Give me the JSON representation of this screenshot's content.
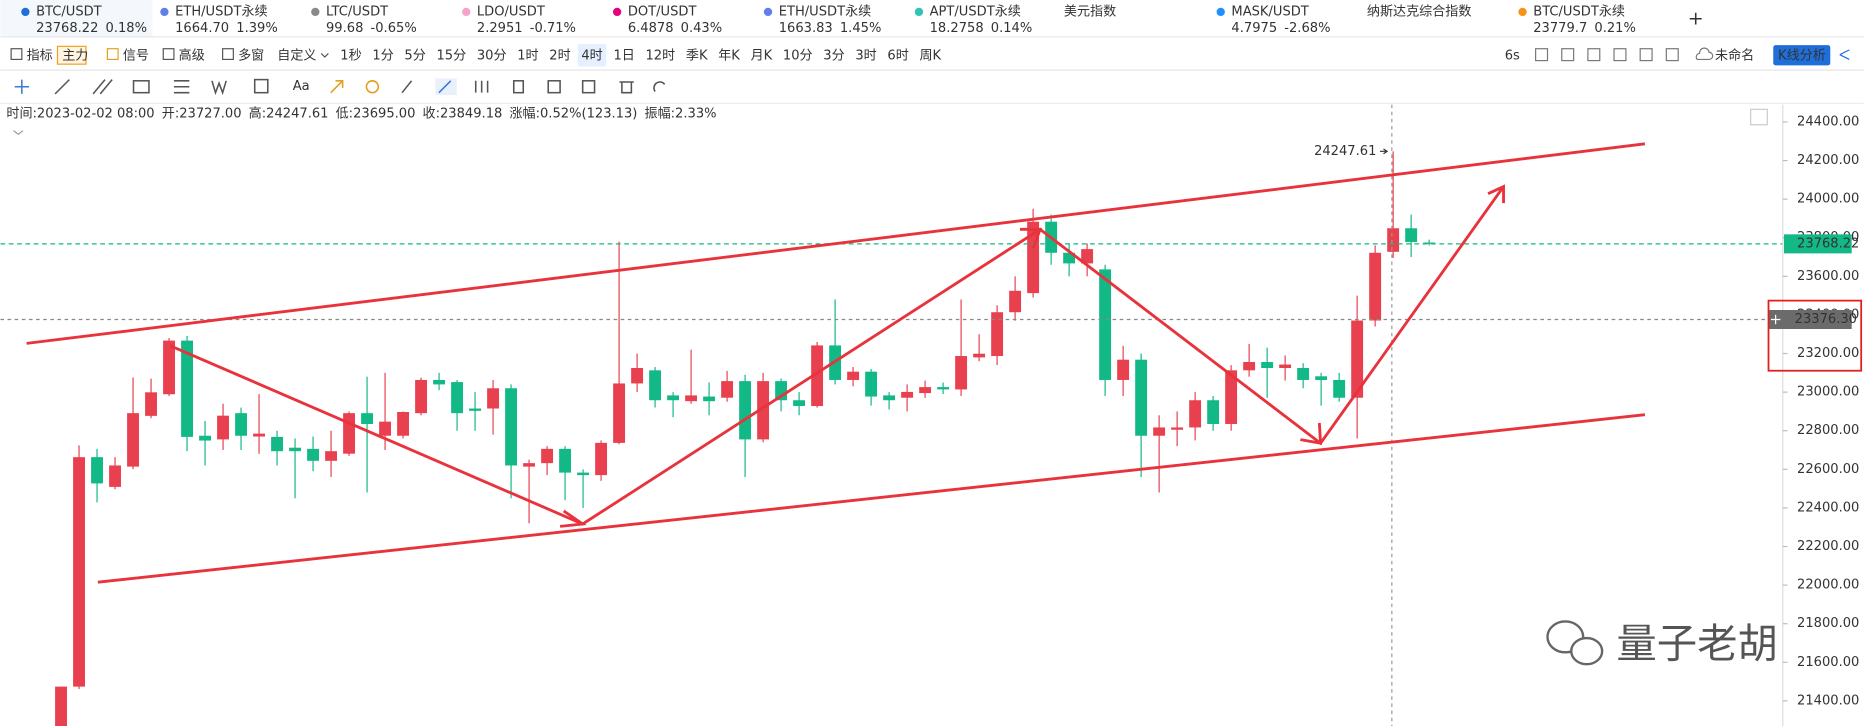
{
  "tickers": [
    {
      "name": "BTC/USDT",
      "price": "23768.22",
      "change": "0.18%"
    },
    {
      "name": "ETH/USDT永续",
      "price": "1664.70",
      "change": "1.39%"
    },
    {
      "name": "LTC/USDT",
      "price": "99.68",
      "change": "-0.65%"
    },
    {
      "name": "LDO/USDT",
      "price": "2.2951",
      "change": "-0.71%"
    },
    {
      "name": "DOT/USDT",
      "price": "6.4878",
      "change": "0.43%"
    },
    {
      "name": "ETH/USDT永续",
      "price": "1663.83",
      "change": "1.45%"
    },
    {
      "name": "APT/USDT永续",
      "price": "18.2758",
      "change": "0.14%"
    },
    {
      "name": "美元指数"
    },
    {
      "name": "MASK/USDT",
      "price": "4.7975",
      "change": "-2.68%"
    },
    {
      "name": "纳斯达克综合指数"
    },
    {
      "name": "BTC/USDT永续",
      "price": "23779.7",
      "change": "0.21%"
    }
  ],
  "toolbar": {
    "left": [
      "指标",
      "主力",
      "信号",
      "高级",
      "多窗",
      "自定义"
    ],
    "intervals": [
      "1秒",
      "1分",
      "5分",
      "15分",
      "30分",
      "1时",
      "2时",
      "4时",
      "1日",
      "12时",
      "季K",
      "年K",
      "月K",
      "10分",
      "3分",
      "3时",
      "6时",
      "周K"
    ],
    "active_interval": "4时",
    "right": [
      "6s",
      "未命名",
      "K线分析"
    ]
  },
  "drawing_tools": {
    "text_tool": "Aa"
  },
  "ohlc_info": [
    {
      "label": "时间:",
      "value": "2023-02-02 08:00"
    },
    {
      "label": "开:",
      "value": "23727.00"
    },
    {
      "label": "高:",
      "value": "24247.61"
    },
    {
      "label": "低:",
      "value": "23695.00"
    },
    {
      "label": "收:",
      "value": "23849.18"
    },
    {
      "label": "涨幅:",
      "value": "0.52%(123.13)"
    },
    {
      "label": "振幅:",
      "value": "2.33%"
    }
  ],
  "chart_data": {
    "type": "candlestick",
    "ylim": [
      21270,
      24490
    ],
    "yticks": [
      {
        "value": 24400,
        "label": "24400.00"
      },
      {
        "value": 24200,
        "label": "24200.00"
      },
      {
        "value": 24000,
        "label": "24000.00"
      },
      {
        "value": 23800,
        "label": "23800.00"
      },
      {
        "value": 23600,
        "label": "23600.00"
      },
      {
        "value": 23400,
        "label": "23400.00"
      },
      {
        "value": 23200,
        "label": "23200.00"
      },
      {
        "value": 23000,
        "label": "23000.00"
      },
      {
        "value": 22800,
        "label": "22800.00"
      },
      {
        "value": 22600,
        "label": "22600.00"
      },
      {
        "value": 22400,
        "label": "22400.00"
      },
      {
        "value": 22200,
        "label": "22200.00"
      },
      {
        "value": 22000,
        "label": "22000.00"
      },
      {
        "value": 21800,
        "label": "21800.00"
      },
      {
        "value": 21600,
        "label": "21600.00"
      },
      {
        "value": 21400,
        "label": "21400.00"
      }
    ],
    "up_color": "#e8404f",
    "down_color": "#12b886",
    "grid": false,
    "open": [
      21250,
      21474,
      22663,
      22509,
      22614,
      22877,
      22989,
      23267,
      22774,
      22755,
      22891,
      22770,
      22768,
      22712,
      22706,
      22644,
      22681,
      22891,
      22774,
      22774,
      22891,
      23063,
      23052,
      22915,
      22915,
      23020,
      22614,
      22632,
      22706,
      22583,
      22570,
      22737,
      23045,
      23113,
      22983,
      22953,
      22977,
      22971,
      23057,
      22755,
      23057,
      22958,
      22928,
      23242,
      23063,
      23106,
      22983,
      22971,
      22995,
      23026,
      23014,
      23180,
      23187,
      23414,
      23513,
      23883,
      23722,
      23667,
      23636,
      23063,
      23168,
      22774,
      22805,
      22817,
      22958,
      22835,
      23113,
      23156,
      23125,
      23125,
      23082,
      23063,
      22971,
      23371,
      23727,
      23849,
      23775
    ],
    "high": [
      21474,
      22724,
      22706,
      22663,
      23076,
      23070,
      23280,
      23291,
      22850,
      22940,
      22920,
      22990,
      22800,
      22760,
      22770,
      22800,
      22900,
      23080,
      23100,
      22900,
      23075,
      23100,
      23063,
      23000,
      23063,
      23040,
      22650,
      22720,
      22720,
      22600,
      22750,
      23780,
      23200,
      23130,
      23000,
      23220,
      23050,
      23110,
      23090,
      23100,
      23070,
      23000,
      23260,
      23480,
      23130,
      23120,
      23000,
      23040,
      23060,
      23050,
      23480,
      23300,
      23450,
      23600,
      23950,
      23920,
      23770,
      23770,
      23660,
      23240,
      23200,
      22880,
      22900,
      23000,
      22980,
      23140,
      23250,
      23230,
      23190,
      23150,
      23100,
      23100,
      23500,
      23760,
      24247.61,
      23920,
      23790
    ],
    "low": [
      21230,
      21462,
      22429,
      22497,
      22601,
      22865,
      22980,
      22694,
      22620,
      22700,
      22700,
      22680,
      22620,
      22450,
      22590,
      22560,
      22670,
      22480,
      22700,
      22760,
      22880,
      23010,
      22800,
      22800,
      22780,
      22450,
      22320,
      22570,
      22440,
      22400,
      22540,
      22730,
      23000,
      22920,
      22870,
      22940,
      22880,
      22950,
      22560,
      22740,
      22900,
      22880,
      22920,
      23040,
      23030,
      22930,
      22910,
      22900,
      22970,
      22990,
      22980,
      23160,
      23140,
      23370,
      23490,
      23660,
      23600,
      23600,
      22980,
      22980,
      22560,
      22480,
      22720,
      22750,
      22800,
      22800,
      23080,
      22970,
      23060,
      23020,
      22930,
      22950,
      22760,
      23340,
      23695,
      23700,
      23760
    ],
    "close": [
      21474,
      22663,
      22527,
      22620,
      22891,
      22999,
      23267,
      22768,
      22749,
      22878,
      22774,
      22785,
      22694,
      22694,
      22644,
      22694,
      22891,
      22835,
      22847,
      22897,
      23063,
      23040,
      22891,
      22903,
      23020,
      22620,
      22632,
      22706,
      22583,
      22570,
      22737,
      23045,
      23125,
      22958,
      22958,
      22983,
      22953,
      23057,
      22755,
      23057,
      22958,
      22928,
      23242,
      23063,
      23106,
      22977,
      22958,
      23001,
      23026,
      23014,
      23187,
      23199,
      23414,
      23525,
      23883,
      23722,
      23667,
      23741,
      23063,
      23168,
      22774,
      22817,
      22817,
      22958,
      22835,
      23113,
      23156,
      23125,
      23143,
      23063,
      23063,
      22971,
      23371,
      23722,
      23849.18,
      23778,
      23768.22
    ],
    "last_price": 23768.22,
    "crosshair_price": {
      "value": 23376.3,
      "label": "23376.30"
    },
    "high_annotation": 24247.61
  },
  "watermark": "量子老胡"
}
